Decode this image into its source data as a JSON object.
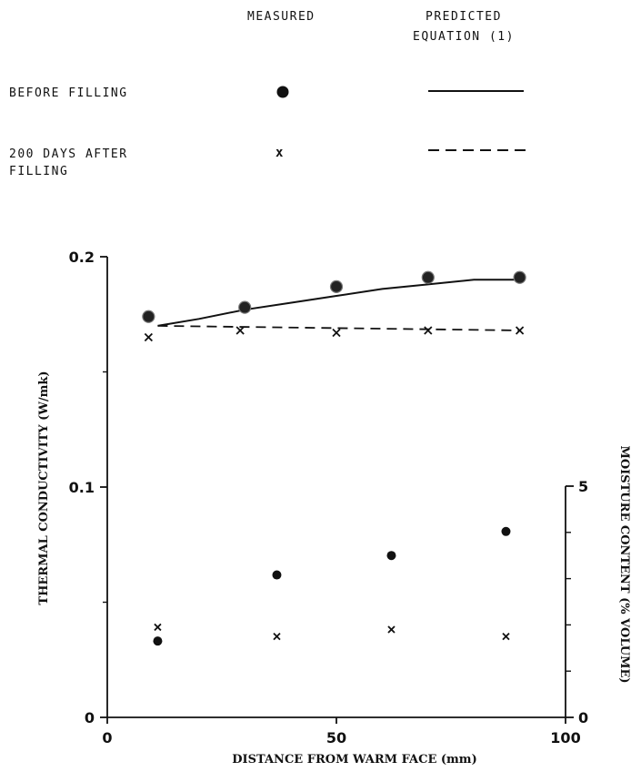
{
  "legend": {
    "col_measured": "MEASURED",
    "col_predicted_1": "PREDICTED",
    "col_predicted_2": "EQUATION (1)",
    "row_before": "BEFORE FILLING",
    "row_after_1": "200 DAYS AFTER",
    "row_after_2": "FILLING",
    "marker_after": "x"
  },
  "chart_data": {
    "type": "line",
    "xlabel": "DISTANCE FROM WARM FACE (mm)",
    "ylabel": "THERMAL CONDUCTIVITY (W/mk)",
    "y2label": "MOISTURE CONTENT (% VOLUME)",
    "xlim": [
      0,
      100
    ],
    "ylim": [
      0,
      0.2
    ],
    "y2lim": [
      0,
      5
    ],
    "x_ticks": [
      0,
      50,
      100
    ],
    "y_ticks": [
      0,
      0.1,
      0.2
    ],
    "y_tick_labels": [
      "0",
      "0.1",
      "0.2"
    ],
    "y2_ticks": [
      0,
      5
    ],
    "grid": false,
    "conductivity": {
      "measured_before": {
        "x": [
          9,
          30,
          50,
          70,
          90
        ],
        "y": [
          0.174,
          0.178,
          0.187,
          0.191,
          0.191
        ]
      },
      "measured_after": {
        "x": [
          9,
          29,
          50,
          70,
          90
        ],
        "y": [
          0.165,
          0.168,
          0.167,
          0.168,
          0.168
        ]
      },
      "predicted_before": {
        "x": [
          11,
          20,
          30,
          40,
          50,
          60,
          70,
          80,
          90
        ],
        "y": [
          0.17,
          0.173,
          0.177,
          0.18,
          0.183,
          0.186,
          0.188,
          0.19,
          0.19
        ]
      },
      "predicted_after": {
        "x": [
          11,
          90
        ],
        "y": [
          0.17,
          0.168
        ]
      }
    },
    "moisture": {
      "before": {
        "x": [
          11,
          37,
          62,
          87
        ],
        "y": [
          1.65,
          3.08,
          3.5,
          4.02
        ]
      },
      "after": {
        "x": [
          11,
          37,
          62,
          87
        ],
        "y": [
          1.95,
          1.75,
          1.9,
          1.75
        ]
      }
    }
  }
}
